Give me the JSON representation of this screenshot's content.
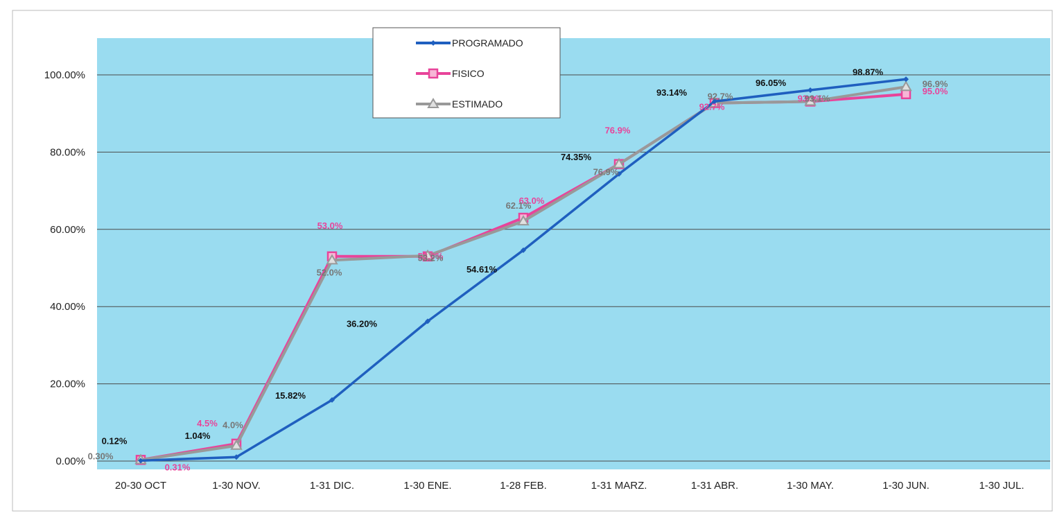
{
  "chart_data": {
    "type": "line",
    "categories": [
      "20-30 OCT",
      "1-30 NOV.",
      "1-31 DIC.",
      "1-30 ENE.",
      "1-28 FEB.",
      "1-31 MARZ.",
      "1-31 ABR.",
      "1-30 MAY.",
      "1-30 JUN.",
      "1-30 JUL."
    ],
    "ylim": [
      0,
      110
    ],
    "yticks": [
      0,
      20,
      40,
      60,
      80,
      100
    ],
    "ytick_labels": [
      "0.00%",
      "20.00%",
      "40.00%",
      "60.00%",
      "80.00%",
      "100.00%"
    ],
    "grid": true,
    "legend_position": "top-center",
    "plot_background": "#9adcf0",
    "series": [
      {
        "name": "PROGRAMADO",
        "color": "#1f5fbf",
        "marker": "diamond",
        "values": [
          0.12,
          1.04,
          15.82,
          36.2,
          54.61,
          74.35,
          93.14,
          96.05,
          98.87,
          null
        ],
        "labels": [
          "0.12%",
          "1.04%",
          "15.82%",
          "36.20%",
          "54.61%",
          "74.35%",
          "93.14%",
          "96.05%",
          "98.87%",
          null
        ],
        "label_color": "#111111"
      },
      {
        "name": "FISICO",
        "color": "#e8449a",
        "marker": "square",
        "values": [
          0.31,
          4.5,
          53.0,
          53.0,
          63.0,
          76.9,
          92.7,
          93.1,
          95.0,
          null
        ],
        "labels": [
          "0.31%",
          "4.5%",
          "53.0%",
          "53.0%",
          "63.0%",
          "76.9%",
          "92.7%",
          "93.1%",
          "95.0%",
          null
        ],
        "label_color": "#e8449a"
      },
      {
        "name": "ESTIMADO",
        "color": "#999999",
        "marker": "triangle",
        "values": [
          0.3,
          4.0,
          52.0,
          53.2,
          62.1,
          76.9,
          92.7,
          93.1,
          96.9,
          null
        ],
        "labels": [
          "0.30%",
          "4.0%",
          "52.0%",
          "53.2%",
          "62.1%",
          "76.9%",
          "92.7%",
          "93.1%",
          "96.9%",
          null
        ],
        "label_color": "#777777"
      }
    ]
  }
}
